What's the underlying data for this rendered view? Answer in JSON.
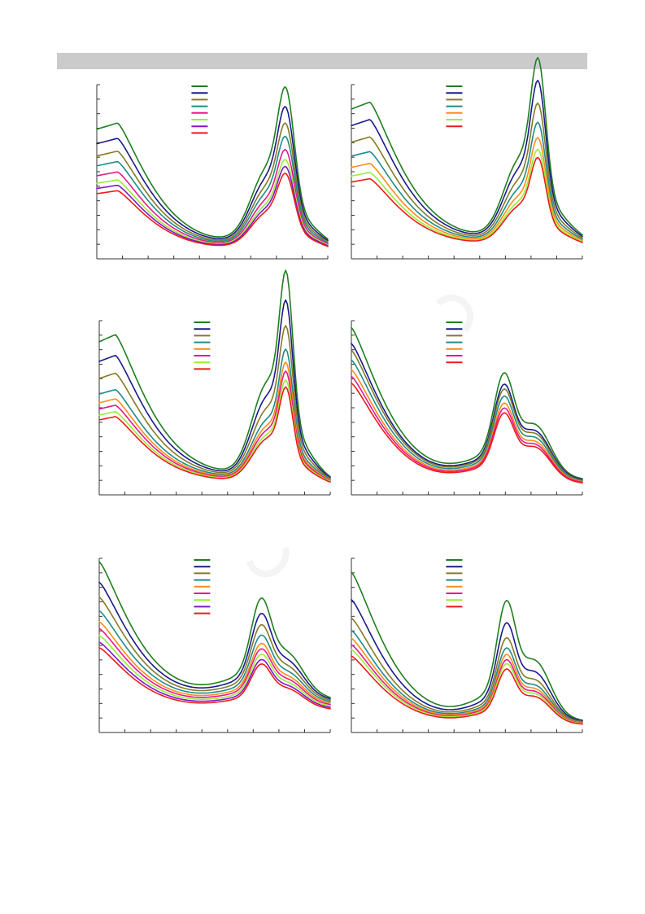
{
  "header": {
    "title": ""
  },
  "palette": {
    "green": "#1f7f1f",
    "navy": "#1a1a8c",
    "olive": "#857a24",
    "teal": "#1f8b8b",
    "orange": "#ff8c1a",
    "magenta": "#e6198c",
    "lime": "#99ee33",
    "purple": "#7f19cc",
    "red": "#ee1a1a"
  },
  "chart_data": [
    {
      "type": "line",
      "title": "",
      "xlabel": "",
      "ylabel": "",
      "xlim": [
        0,
        1
      ],
      "ylim": [
        0,
        1
      ],
      "grid": false,
      "legend_position": "top-center",
      "curve": {
        "left_edge": 0.78,
        "left_shoulder_x": 0.09,
        "valley_x": 0.42,
        "valley_y": 0.07,
        "peak_x": 0.82,
        "peak_y": 0.67,
        "peak_width": 0.05,
        "shoulder_x": 0.73,
        "shoulder_y": 0.34,
        "right_edge": 0.04
      },
      "series": [
        {
          "color": "#1f7f1f",
          "scale": 1.0
        },
        {
          "color": "#1a1a8c",
          "scale": 0.88
        },
        {
          "color": "#857a24",
          "scale": 0.78
        },
        {
          "color": "#1f8b8b",
          "scale": 0.7
        },
        {
          "color": "#e6198c",
          "scale": 0.62
        },
        {
          "color": "#99ee33",
          "scale": 0.56
        },
        {
          "color": "#7f19cc",
          "scale": 0.52
        },
        {
          "color": "#ee1a1a",
          "scale": 0.48
        }
      ]
    },
    {
      "type": "line",
      "title": "",
      "xlabel": "",
      "ylabel": "",
      "xlim": [
        0,
        1
      ],
      "ylim": [
        0,
        1
      ],
      "grid": false,
      "legend_position": "top-center",
      "curve": {
        "left_edge": 0.9,
        "left_shoulder_x": 0.08,
        "valley_x": 0.44,
        "valley_y": 0.1,
        "peak_x": 0.81,
        "peak_y": 0.8,
        "peak_width": 0.045,
        "shoulder_x": 0.72,
        "shoulder_y": 0.38,
        "right_edge": 0.08
      },
      "series": [
        {
          "color": "#1f7f1f",
          "scale": 1.0
        },
        {
          "color": "#1a1a8c",
          "scale": 0.88
        },
        {
          "color": "#857a24",
          "scale": 0.76
        },
        {
          "color": "#1f8b8b",
          "scale": 0.66
        },
        {
          "color": "#ff8c1a",
          "scale": 0.58
        },
        {
          "color": "#99ee33",
          "scale": 0.52
        },
        {
          "color": "#ee1a1a",
          "scale": 0.48
        }
      ]
    },
    {
      "type": "line",
      "title": "",
      "xlabel": "",
      "ylabel": "",
      "xlim": [
        0,
        1
      ],
      "ylim": [
        0,
        1
      ],
      "grid": false,
      "legend_position": "top-center",
      "curve": {
        "left_edge": 0.92,
        "left_shoulder_x": 0.07,
        "valley_x": 0.44,
        "valley_y": 0.1,
        "peak_x": 0.81,
        "peak_y": 0.88,
        "peak_width": 0.04,
        "shoulder_x": 0.72,
        "shoulder_y": 0.45,
        "right_edge": 0.06
      },
      "series": [
        {
          "color": "#1f7f1f",
          "scale": 1.0
        },
        {
          "color": "#1a1a8c",
          "scale": 0.86
        },
        {
          "color": "#857a24",
          "scale": 0.74
        },
        {
          "color": "#1f8b8b",
          "scale": 0.63
        },
        {
          "color": "#ff8c1a",
          "scale": 0.57
        },
        {
          "color": "#e6198c",
          "scale": 0.53
        },
        {
          "color": "#99ee33",
          "scale": 0.49
        },
        {
          "color": "#ee1a1a",
          "scale": 0.46
        }
      ]
    },
    {
      "type": "line",
      "title": "",
      "xlabel": "",
      "ylabel": "",
      "xlim": [
        0,
        1
      ],
      "ylim": [
        0,
        1
      ],
      "grid": false,
      "legend_position": "top-center",
      "curve": {
        "left_edge": 0.96,
        "left_shoulder_x": 0.0,
        "valley_x": 0.44,
        "valley_y": 0.08,
        "peak_x": 0.66,
        "peak_y": 0.52,
        "peak_width": 0.06,
        "shoulder_x": 0.8,
        "shoulder_y": 0.3,
        "right_edge": 0.08
      },
      "series": [
        {
          "color": "#1f7f1f",
          "scale": 1.0
        },
        {
          "color": "#1a1a8c",
          "scale": 0.9
        },
        {
          "color": "#857a24",
          "scale": 0.86
        },
        {
          "color": "#1f8b8b",
          "scale": 0.8
        },
        {
          "color": "#ff8c1a",
          "scale": 0.74
        },
        {
          "color": "#e6198c",
          "scale": 0.7
        },
        {
          "color": "#ee1a1a",
          "scale": 0.66
        }
      ]
    },
    {
      "type": "line",
      "title": "",
      "xlabel": "",
      "ylabel": "",
      "xlim": [
        0,
        1
      ],
      "ylim": [
        0,
        1
      ],
      "grid": false,
      "legend_position": "top-center",
      "curve": {
        "left_edge": 0.98,
        "left_shoulder_x": 0.0,
        "valley_x": 0.42,
        "valley_y": 0.2,
        "peak_x": 0.7,
        "peak_y": 0.6,
        "peak_width": 0.06,
        "shoulder_x": 0.82,
        "shoulder_y": 0.36,
        "right_edge": 0.18
      },
      "series": [
        {
          "color": "#1f7f1f",
          "scale": 1.0
        },
        {
          "color": "#1a1a8c",
          "scale": 0.86
        },
        {
          "color": "#857a24",
          "scale": 0.76
        },
        {
          "color": "#1f8b8b",
          "scale": 0.67
        },
        {
          "color": "#ff8c1a",
          "scale": 0.6
        },
        {
          "color": "#e6198c",
          "scale": 0.56
        },
        {
          "color": "#99ee33",
          "scale": 0.52
        },
        {
          "color": "#7f19cc",
          "scale": 0.48
        },
        {
          "color": "#ee1a1a",
          "scale": 0.45
        }
      ]
    },
    {
      "type": "line",
      "title": "",
      "xlabel": "",
      "ylabel": "",
      "xlim": [
        0,
        1
      ],
      "ylim": [
        0,
        1
      ],
      "grid": false,
      "legend_position": "top-center",
      "curve": {
        "left_edge": 0.92,
        "left_shoulder_x": 0.0,
        "valley_x": 0.44,
        "valley_y": 0.06,
        "peak_x": 0.67,
        "peak_y": 0.55,
        "peak_width": 0.055,
        "shoulder_x": 0.8,
        "shoulder_y": 0.3,
        "right_edge": 0.06
      },
      "series": [
        {
          "color": "#1f7f1f",
          "scale": 1.0
        },
        {
          "color": "#1a1a8c",
          "scale": 0.82
        },
        {
          "color": "#857a24",
          "scale": 0.7
        },
        {
          "color": "#1f8b8b",
          "scale": 0.62
        },
        {
          "color": "#ff8c1a",
          "scale": 0.57
        },
        {
          "color": "#e6198c",
          "scale": 0.53
        },
        {
          "color": "#99ee33",
          "scale": 0.5
        },
        {
          "color": "#ee1a1a",
          "scale": 0.46
        }
      ]
    }
  ]
}
